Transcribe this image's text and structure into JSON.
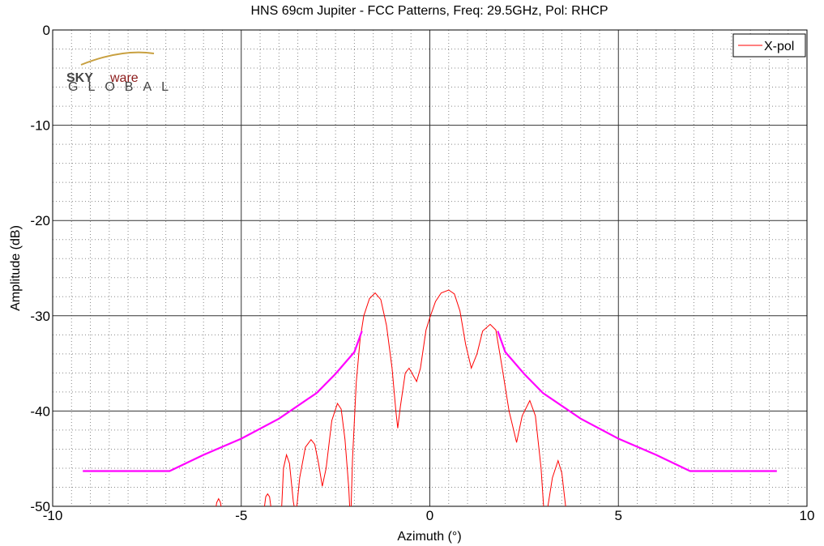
{
  "chart_data": {
    "type": "line",
    "title": "HNS 69cm Jupiter - FCC Patterns, Freq: 29.5GHz, Pol: RHCP",
    "xlabel": "Azimuth (°)",
    "ylabel": "Amplitude (dB)",
    "logo": {
      "sky": "SKY",
      "ware": "ware",
      "global": "GLOBAL"
    },
    "xlim": [
      -10,
      10
    ],
    "ylim": [
      -50,
      0
    ],
    "xticks": [
      -10,
      -5,
      0,
      5,
      10
    ],
    "yticks": [
      -50,
      -40,
      -30,
      -20,
      -10,
      0
    ],
    "xminorticks": [
      -9.5,
      -9,
      -8.5,
      -8,
      -7.5,
      -7,
      -6.5,
      -6,
      -5.5,
      -4.5,
      -4,
      -3.5,
      -3,
      -2.5,
      -2,
      -1.5,
      -1,
      -0.5,
      0.5,
      1,
      1.5,
      2,
      2.5,
      3,
      3.5,
      4,
      4.5,
      5.5,
      6,
      6.5,
      7,
      7.5,
      8,
      8.5,
      9,
      9.5
    ],
    "yminorticks": [
      -48,
      -46,
      -44,
      -42,
      -38,
      -36,
      -34,
      -32,
      -28,
      -26,
      -24,
      -22,
      -18,
      -16,
      -14,
      -12,
      -8,
      -6,
      -4,
      -2
    ],
    "grid": true,
    "legend": "upper right",
    "series": [
      {
        "name": "X-pol",
        "color": "#ff0000",
        "x": [
          -5.75,
          -5.65,
          -5.6,
          -5.55,
          -5.45,
          -4.45,
          -4.35,
          -4.3,
          -4.25,
          -4.15,
          -3.95,
          -3.88,
          -3.8,
          -3.72,
          -3.62,
          -3.55,
          -3.45,
          -3.3,
          -3.15,
          -3.05,
          -2.95,
          -2.85,
          -2.75,
          -2.6,
          -2.45,
          -2.35,
          -2.25,
          -2.15,
          -2.1,
          -2.05,
          -1.95,
          -1.85,
          -1.75,
          -1.6,
          -1.45,
          -1.3,
          -1.15,
          -1.0,
          -0.9,
          -0.85,
          -0.78,
          -0.65,
          -0.55,
          -0.45,
          -0.35,
          -0.25,
          -0.1,
          0,
          0.15,
          0.3,
          0.5,
          0.65,
          0.8,
          0.95,
          1.1,
          1.25,
          1.4,
          1.6,
          1.75,
          1.9,
          2.1,
          2.3,
          2.45,
          2.65,
          2.8,
          2.95,
          3.05,
          3.25,
          3.4,
          3.5,
          3.6,
          3.65
        ],
        "values": [
          -52,
          -49.6,
          -49.2,
          -49.6,
          -52,
          -52,
          -49,
          -48.7,
          -49,
          -52,
          -52,
          -46,
          -44.6,
          -45.5,
          -49.5,
          -51,
          -47,
          -43.8,
          -43.0,
          -43.5,
          -45.5,
          -47.9,
          -46,
          -41,
          -39.2,
          -39.8,
          -43,
          -48,
          -52,
          -45,
          -37,
          -32.5,
          -30,
          -28.2,
          -27.6,
          -28.3,
          -31,
          -35.5,
          -40,
          -41.8,
          -39.5,
          -36,
          -35.5,
          -36.2,
          -36.9,
          -35.5,
          -31.5,
          -30.2,
          -28.5,
          -27.6,
          -27.3,
          -27.7,
          -29.5,
          -33,
          -35.5,
          -34,
          -31.6,
          -30.9,
          -31.5,
          -35,
          -40,
          -43.3,
          -40.5,
          -38.9,
          -40.5,
          -46,
          -52,
          -47,
          -45.2,
          -46.5,
          -50,
          -52
        ]
      },
      {
        "color": "#ff00ff",
        "x": [
          -9.2,
          -6.9,
          -6,
          -5,
          -4,
          -3,
          -2.5,
          -2,
          -1.8,
          0,
          1.8,
          2,
          2.5,
          3,
          4,
          5,
          6,
          6.9,
          9.2
        ],
        "values": [
          -46.3,
          -46.3,
          -44.6,
          -42.9,
          -40.8,
          -38.1,
          -36.1,
          -33.8,
          -31.6,
          null,
          -31.6,
          -33.8,
          -36.1,
          -38.1,
          -40.8,
          -42.9,
          -44.6,
          -46.3,
          -46.3
        ]
      }
    ]
  }
}
